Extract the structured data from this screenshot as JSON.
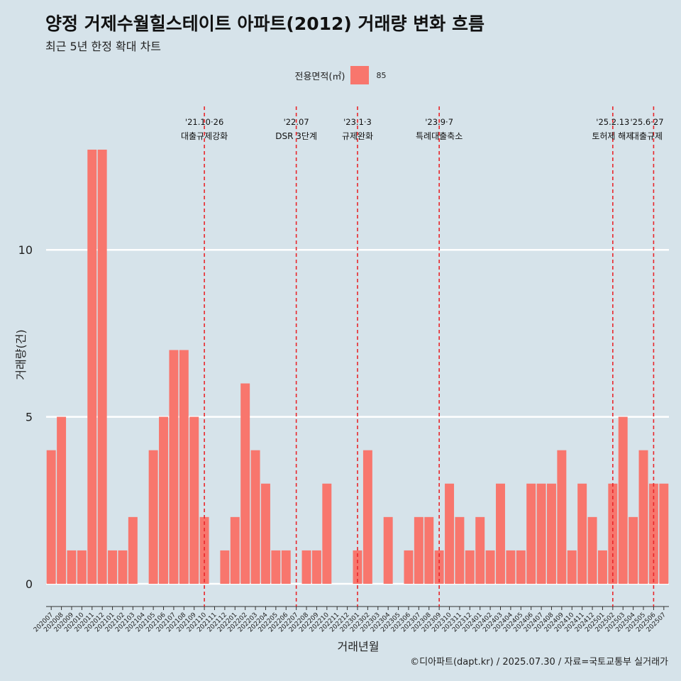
{
  "title": "양정 거제수월힐스테이트 아파트(2012) 거래량 변화 흐름",
  "subtitle": "최근 5년 한정 확대 차트",
  "legend": {
    "title": "전용면적(㎡)",
    "label": "85",
    "color": "#f8766d"
  },
  "caption": "©디아파트(dapt.kr) / 2025.07.30 / 자료=국토교통부 실거래가",
  "chart_data": {
    "type": "bar",
    "xlabel": "거래년월",
    "ylabel": "거래량(건)",
    "ylim": [
      0,
      13
    ],
    "yticks": [
      0,
      5,
      10
    ],
    "bar_color": "#f8766d",
    "categories": [
      "202007",
      "202008",
      "202009",
      "202010",
      "202011",
      "202012",
      "202101",
      "202102",
      "202103",
      "202104",
      "202105",
      "202106",
      "202107",
      "202108",
      "202109",
      "202110",
      "202111",
      "202112",
      "202201",
      "202202",
      "202203",
      "202204",
      "202205",
      "202206",
      "202207",
      "202208",
      "202209",
      "202210",
      "202211",
      "202212",
      "202301",
      "202302",
      "202303",
      "202304",
      "202305",
      "202306",
      "202307",
      "202308",
      "202309",
      "202310",
      "202311",
      "202312",
      "202401",
      "202402",
      "202403",
      "202404",
      "202405",
      "202406",
      "202407",
      "202408",
      "202409",
      "202410",
      "202411",
      "202412",
      "202501",
      "202502",
      "202503",
      "202504",
      "202505",
      "202506",
      "202507"
    ],
    "values": [
      4,
      5,
      1,
      1,
      13,
      13,
      1,
      1,
      2,
      0,
      4,
      5,
      7,
      7,
      5,
      2,
      0,
      1,
      2,
      6,
      4,
      3,
      1,
      1,
      0,
      1,
      1,
      3,
      0,
      0,
      1,
      4,
      0,
      2,
      0,
      1,
      2,
      2,
      1,
      3,
      2,
      1,
      2,
      1,
      3,
      1,
      1,
      3,
      3,
      3,
      4,
      1,
      3,
      2,
      1,
      3,
      5,
      2,
      4,
      3,
      3
    ],
    "annotations": [
      {
        "category": "202110",
        "date": "'21.10·26",
        "text": "대출규제강화"
      },
      {
        "category": "202207",
        "date": "'22.07",
        "text": "DSR 3단계"
      },
      {
        "category": "202301",
        "date": "'23.1·3",
        "text": "규제완화"
      },
      {
        "category": "202309",
        "date": "'23.9·7",
        "text": "특례대출축소"
      },
      {
        "category": "202502",
        "date": "'25.2.13",
        "text": "토허제 해제"
      },
      {
        "category": "202506",
        "date": "'25.6·27",
        "text": "대출규제"
      }
    ],
    "grid": true,
    "legend_position": "top"
  }
}
